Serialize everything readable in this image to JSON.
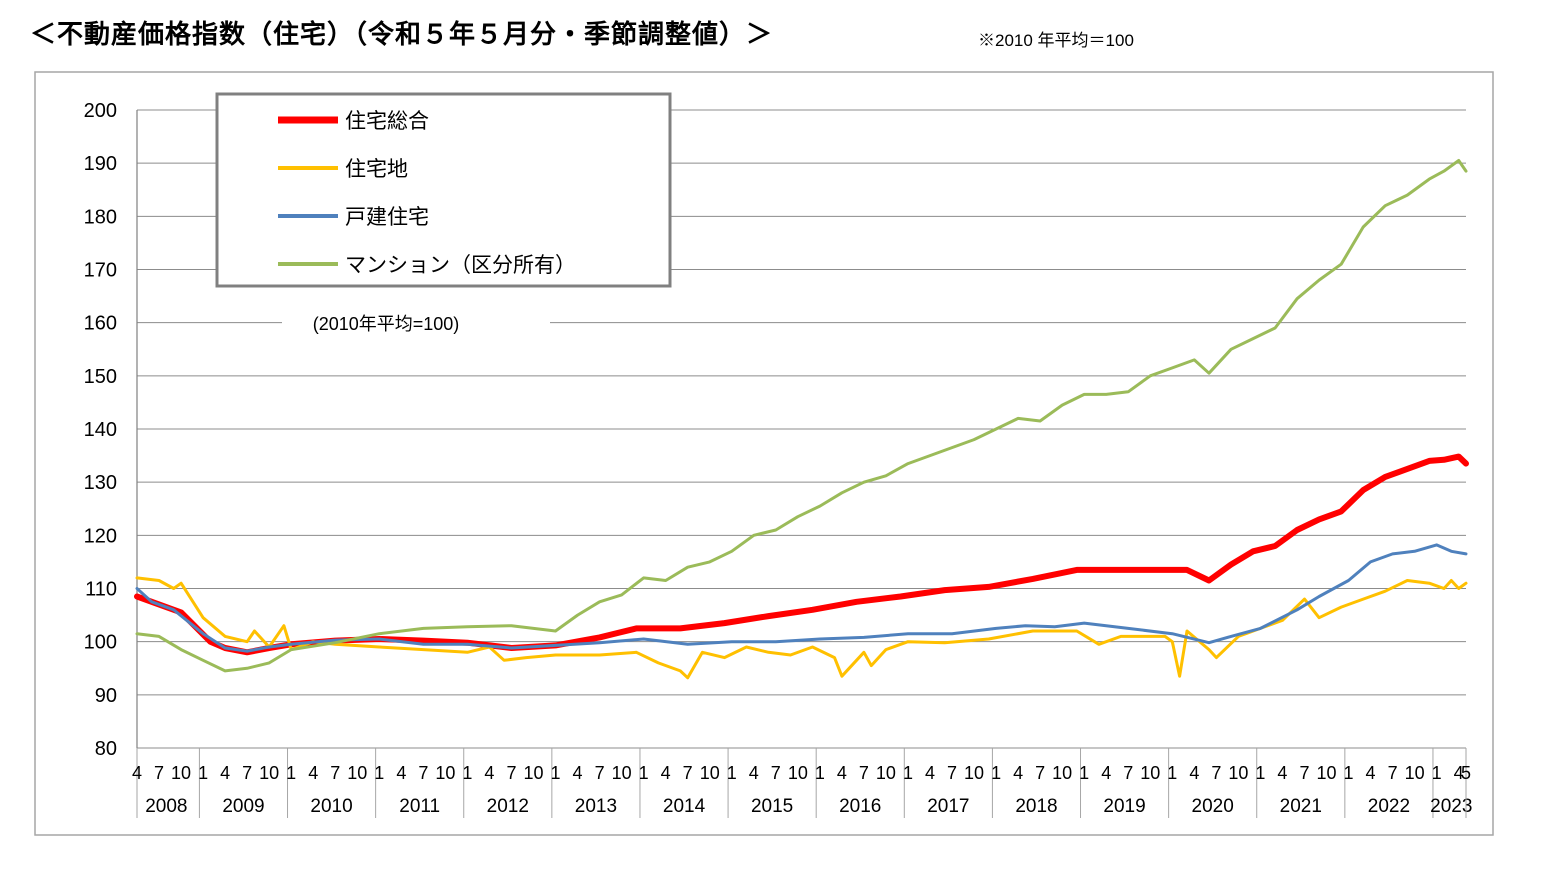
{
  "header": {
    "title": "＜不動産価格指数（住宅）（令和５年５月分・季節調整値）＞",
    "note": "※2010 年平均＝100"
  },
  "chart_data": {
    "type": "line",
    "annotation": "(2010年平均=100)",
    "ylim": [
      80,
      200
    ],
    "yticks": [
      80,
      90,
      100,
      110,
      120,
      130,
      140,
      150,
      160,
      170,
      180,
      190,
      200
    ],
    "grid": true,
    "legend_position": "top-left",
    "x_start": "2008-04",
    "x_end": "2023-05",
    "month_tick_labels": [
      "1",
      "4",
      "7",
      "10"
    ],
    "last_month_label": "5",
    "years": [
      "2008",
      "2009",
      "2010",
      "2011",
      "2012",
      "2013",
      "2014",
      "2015",
      "2016",
      "2017",
      "2018",
      "2019",
      "2020",
      "2021",
      "2022",
      "2023"
    ],
    "series": [
      {
        "name": "住宅総合",
        "color": "#ff0000",
        "width": 6,
        "points": [
          [
            "2008-04",
            108.5
          ],
          [
            "2008-10",
            105.5
          ],
          [
            "2009-02",
            100
          ],
          [
            "2009-04",
            98.8
          ],
          [
            "2009-07",
            98
          ],
          [
            "2009-10",
            98.8
          ],
          [
            "2010-01",
            99.5
          ],
          [
            "2010-07",
            100.2
          ],
          [
            "2011-01",
            100.5
          ],
          [
            "2011-07",
            100.2
          ],
          [
            "2012-01",
            99.8
          ],
          [
            "2012-07",
            98.8
          ],
          [
            "2013-01",
            99.3
          ],
          [
            "2013-07",
            100.8
          ],
          [
            "2013-12",
            102.5
          ],
          [
            "2014-06",
            102.5
          ],
          [
            "2014-12",
            103.5
          ],
          [
            "2015-06",
            104.8
          ],
          [
            "2015-12",
            106
          ],
          [
            "2016-06",
            107.5
          ],
          [
            "2016-12",
            108.5
          ],
          [
            "2017-06",
            109.7
          ],
          [
            "2017-12",
            110.3
          ],
          [
            "2018-06",
            111.8
          ],
          [
            "2018-12",
            113.5
          ],
          [
            "2019-06",
            113.5
          ],
          [
            "2019-12",
            113.5
          ],
          [
            "2020-03",
            113.5
          ],
          [
            "2020-06",
            111.5
          ],
          [
            "2020-09",
            114.5
          ],
          [
            "2020-12",
            117
          ],
          [
            "2021-03",
            118
          ],
          [
            "2021-06",
            121
          ],
          [
            "2021-09",
            123
          ],
          [
            "2021-12",
            124.5
          ],
          [
            "2022-03",
            128.5
          ],
          [
            "2022-06",
            131
          ],
          [
            "2022-09",
            132.5
          ],
          [
            "2022-12",
            134
          ],
          [
            "2023-02",
            134.2
          ],
          [
            "2023-04",
            134.8
          ],
          [
            "2023-05",
            133.5
          ]
        ]
      },
      {
        "name": "住宅地",
        "color": "#ffc000",
        "width": 3,
        "points": [
          [
            "2008-04",
            112
          ],
          [
            "2008-07",
            111.5
          ],
          [
            "2008-09",
            110
          ],
          [
            "2008-10",
            111
          ],
          [
            "2009-01",
            104.5
          ],
          [
            "2009-04",
            101
          ],
          [
            "2009-07",
            100
          ],
          [
            "2009-08",
            102
          ],
          [
            "2009-10",
            99
          ],
          [
            "2009-12",
            103
          ],
          [
            "2010-01",
            98.5
          ],
          [
            "2010-04",
            100
          ],
          [
            "2010-07",
            99.5
          ],
          [
            "2011-01",
            99
          ],
          [
            "2011-07",
            98.5
          ],
          [
            "2012-01",
            98
          ],
          [
            "2012-04",
            99
          ],
          [
            "2012-06",
            96.5
          ],
          [
            "2012-09",
            97
          ],
          [
            "2013-01",
            97.5
          ],
          [
            "2013-07",
            97.5
          ],
          [
            "2013-12",
            98
          ],
          [
            "2014-03",
            96
          ],
          [
            "2014-06",
            94.5
          ],
          [
            "2014-07",
            93.2
          ],
          [
            "2014-09",
            98
          ],
          [
            "2014-12",
            97
          ],
          [
            "2015-03",
            99
          ],
          [
            "2015-06",
            98
          ],
          [
            "2015-09",
            97.5
          ],
          [
            "2015-12",
            99
          ],
          [
            "2016-03",
            97
          ],
          [
            "2016-04",
            93.5
          ],
          [
            "2016-07",
            98
          ],
          [
            "2016-08",
            95.5
          ],
          [
            "2016-10",
            98.5
          ],
          [
            "2017-01",
            100
          ],
          [
            "2017-06",
            99.8
          ],
          [
            "2017-12",
            100.5
          ],
          [
            "2018-06",
            102
          ],
          [
            "2018-12",
            102
          ],
          [
            "2019-03",
            99.5
          ],
          [
            "2019-06",
            101
          ],
          [
            "2019-12",
            101
          ],
          [
            "2020-01",
            100
          ],
          [
            "2020-02",
            93.5
          ],
          [
            "2020-03",
            102
          ],
          [
            "2020-06",
            98.5
          ],
          [
            "2020-07",
            97
          ],
          [
            "2020-10",
            101
          ],
          [
            "2021-01",
            102.5
          ],
          [
            "2021-04",
            104
          ],
          [
            "2021-07",
            108
          ],
          [
            "2021-09",
            104.5
          ],
          [
            "2021-12",
            106.5
          ],
          [
            "2022-03",
            108
          ],
          [
            "2022-06",
            109.5
          ],
          [
            "2022-09",
            111.5
          ],
          [
            "2022-12",
            111
          ],
          [
            "2023-02",
            110
          ],
          [
            "2023-03",
            111.5
          ],
          [
            "2023-04",
            110
          ],
          [
            "2023-05",
            111
          ]
        ]
      },
      {
        "name": "戸建住宅",
        "color": "#4f81bd",
        "width": 3,
        "points": [
          [
            "2008-04",
            110
          ],
          [
            "2008-06",
            107.5
          ],
          [
            "2008-09",
            106
          ],
          [
            "2009-01",
            101.5
          ],
          [
            "2009-04",
            98.8
          ],
          [
            "2009-07",
            98.2
          ],
          [
            "2009-10",
            99
          ],
          [
            "2010-01",
            99.5
          ],
          [
            "2010-07",
            100.3
          ],
          [
            "2011-01",
            100.5
          ],
          [
            "2011-07",
            99.5
          ],
          [
            "2012-01",
            99.5
          ],
          [
            "2012-07",
            98.8
          ],
          [
            "2013-01",
            99.3
          ],
          [
            "2013-07",
            99.8
          ],
          [
            "2014-01",
            100.5
          ],
          [
            "2014-07",
            99.5
          ],
          [
            "2015-01",
            100
          ],
          [
            "2015-07",
            100
          ],
          [
            "2016-01",
            100.5
          ],
          [
            "2016-07",
            100.8
          ],
          [
            "2017-01",
            101.5
          ],
          [
            "2017-07",
            101.5
          ],
          [
            "2018-01",
            102.5
          ],
          [
            "2018-05",
            103
          ],
          [
            "2018-09",
            102.8
          ],
          [
            "2019-01",
            103.5
          ],
          [
            "2019-07",
            102.5
          ],
          [
            "2020-01",
            101.5
          ],
          [
            "2020-06",
            99.8
          ],
          [
            "2020-09",
            101
          ],
          [
            "2021-01",
            102.5
          ],
          [
            "2021-06",
            106
          ],
          [
            "2021-09",
            108.5
          ],
          [
            "2022-01",
            111.5
          ],
          [
            "2022-04",
            115
          ],
          [
            "2022-07",
            116.5
          ],
          [
            "2022-10",
            117
          ],
          [
            "2023-01",
            118.2
          ],
          [
            "2023-03",
            117
          ],
          [
            "2023-05",
            116.5
          ]
        ]
      },
      {
        "name": "マンション（区分所有）",
        "color": "#9bbb59",
        "width": 3,
        "points": [
          [
            "2008-04",
            101.5
          ],
          [
            "2008-07",
            101
          ],
          [
            "2008-10",
            98.5
          ],
          [
            "2009-01",
            96.5
          ],
          [
            "2009-04",
            94.5
          ],
          [
            "2009-07",
            95
          ],
          [
            "2009-10",
            96
          ],
          [
            "2010-01",
            98.5
          ],
          [
            "2010-07",
            99.8
          ],
          [
            "2011-01",
            101.5
          ],
          [
            "2011-07",
            102.5
          ],
          [
            "2012-01",
            102.8
          ],
          [
            "2012-07",
            103
          ],
          [
            "2013-01",
            102
          ],
          [
            "2013-04",
            105
          ],
          [
            "2013-07",
            107.5
          ],
          [
            "2013-10",
            108.8
          ],
          [
            "2014-01",
            112
          ],
          [
            "2014-04",
            111.5
          ],
          [
            "2014-07",
            114
          ],
          [
            "2014-10",
            115
          ],
          [
            "2015-01",
            117
          ],
          [
            "2015-04",
            120
          ],
          [
            "2015-07",
            121
          ],
          [
            "2015-10",
            123.5
          ],
          [
            "2016-01",
            125.5
          ],
          [
            "2016-04",
            128
          ],
          [
            "2016-07",
            130
          ],
          [
            "2016-10",
            131.2
          ],
          [
            "2017-01",
            133.5
          ],
          [
            "2017-04",
            135
          ],
          [
            "2017-07",
            136.5
          ],
          [
            "2017-10",
            138
          ],
          [
            "2018-01",
            140
          ],
          [
            "2018-04",
            142
          ],
          [
            "2018-07",
            141.5
          ],
          [
            "2018-10",
            144.5
          ],
          [
            "2019-01",
            146.5
          ],
          [
            "2019-04",
            146.5
          ],
          [
            "2019-07",
            147
          ],
          [
            "2019-10",
            150
          ],
          [
            "2020-01",
            151.5
          ],
          [
            "2020-04",
            153
          ],
          [
            "2020-06",
            150.5
          ],
          [
            "2020-09",
            155
          ],
          [
            "2020-12",
            157
          ],
          [
            "2021-03",
            159
          ],
          [
            "2021-06",
            164.5
          ],
          [
            "2021-09",
            168
          ],
          [
            "2021-12",
            171
          ],
          [
            "2022-03",
            178
          ],
          [
            "2022-06",
            182
          ],
          [
            "2022-09",
            184
          ],
          [
            "2022-12",
            187
          ],
          [
            "2023-02",
            188.5
          ],
          [
            "2023-04",
            190.5
          ],
          [
            "2023-05",
            188.5
          ]
        ]
      }
    ]
  }
}
